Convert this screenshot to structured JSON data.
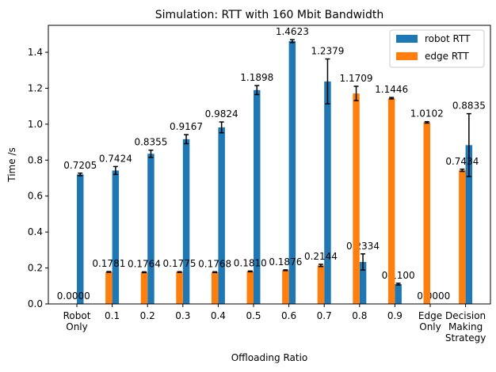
{
  "chart_data": {
    "type": "bar",
    "title": "Simulation: RTT with 160 Mbit Bandwidth",
    "xlabel": "Offloading Ratio",
    "ylabel": "Time /s",
    "ylim": [
      0,
      1.55
    ],
    "yticks": [
      "0.0",
      "0.2",
      "0.4",
      "0.6",
      "0.8",
      "1.0",
      "1.2",
      "1.4"
    ],
    "categories": [
      [
        "Robot",
        "Only"
      ],
      [
        "0.1"
      ],
      [
        "0.2"
      ],
      [
        "0.3"
      ],
      [
        "0.4"
      ],
      [
        "0.5"
      ],
      [
        "0.6"
      ],
      [
        "0.7"
      ],
      [
        "0.8"
      ],
      [
        "0.9"
      ],
      [
        "Edge",
        "Only"
      ],
      [
        "Decision",
        "Making",
        "Strategy"
      ]
    ],
    "legend_position": "top-right",
    "series": [
      {
        "name": "robot RTT",
        "color": "#1f77b4",
        "values": [
          0.7205,
          0.7424,
          0.8355,
          0.9167,
          0.9824,
          1.1898,
          1.4623,
          1.2379,
          0.2334,
          0.11,
          0.0,
          0.8835
        ],
        "errors": [
          0.007,
          0.022,
          0.02,
          0.025,
          0.03,
          0.025,
          0.008,
          0.125,
          0.045,
          0.005,
          0.0,
          0.175
        ],
        "labels": [
          "0.7205",
          "0.7424",
          "0.8355",
          "0.9167",
          "0.9824",
          "1.1898",
          "1.4623",
          "1.2379",
          "0.2334",
          "0.1100",
          "0.0000",
          "0.8835"
        ]
      },
      {
        "name": "edge RTT",
        "color": "#ff7f0e",
        "values": [
          0.0,
          0.1781,
          0.1764,
          0.1775,
          0.1768,
          0.181,
          0.1876,
          0.2144,
          1.1709,
          1.1446,
          1.0102,
          0.7434
        ],
        "errors": [
          0.0,
          0.002,
          0.002,
          0.002,
          0.002,
          0.002,
          0.002,
          0.006,
          0.04,
          0.004,
          0.004,
          0.006
        ],
        "labels": [
          "0.0000",
          "0.1781",
          "0.1764",
          "0.1775",
          "0.1768",
          "0.1810",
          "0.1876",
          "0.2144",
          "1.1709",
          "1.1446",
          "1.0102",
          "0.7434"
        ]
      }
    ]
  }
}
